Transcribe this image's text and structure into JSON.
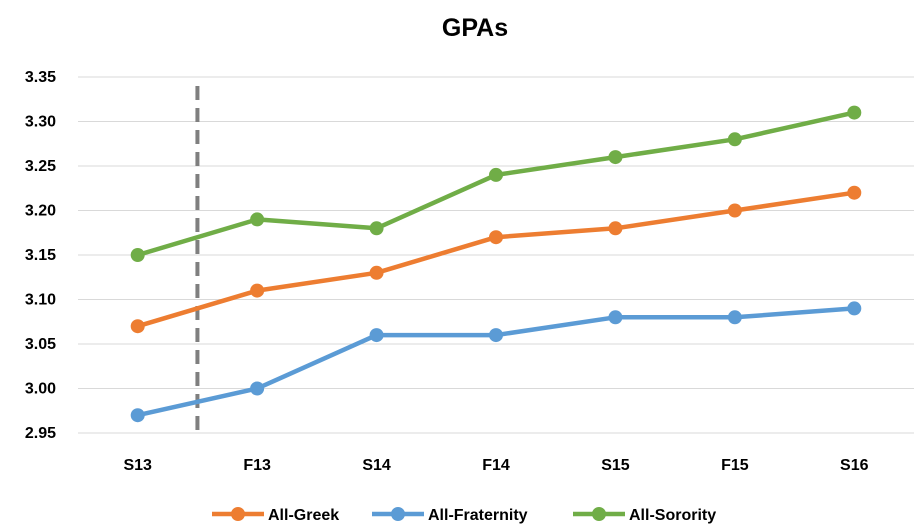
{
  "chart_data": {
    "type": "line",
    "title": "GPAs",
    "xlabel": "",
    "ylabel": "",
    "categories": [
      "S13",
      "F13",
      "S14",
      "F14",
      "S15",
      "F15",
      "S16"
    ],
    "ylim": [
      2.95,
      3.35
    ],
    "yticks": [
      "3.35",
      "3.30",
      "3.25",
      "3.20",
      "3.15",
      "3.10",
      "3.05",
      "3.00",
      "2.95"
    ],
    "grid": true,
    "legend_position": "bottom",
    "divider_after_category": "S13",
    "series": [
      {
        "name": "All-Greek",
        "color": "#ed7d31",
        "values": [
          3.07,
          3.11,
          3.13,
          3.17,
          3.18,
          3.2,
          3.22
        ]
      },
      {
        "name": "All-Fraternity",
        "color": "#5b9bd5",
        "values": [
          2.97,
          3.0,
          3.06,
          3.06,
          3.08,
          3.08,
          3.09
        ]
      },
      {
        "name": "All-Sorority",
        "color": "#70ad47",
        "values": [
          3.15,
          3.19,
          3.18,
          3.24,
          3.26,
          3.28,
          3.31
        ]
      }
    ]
  }
}
